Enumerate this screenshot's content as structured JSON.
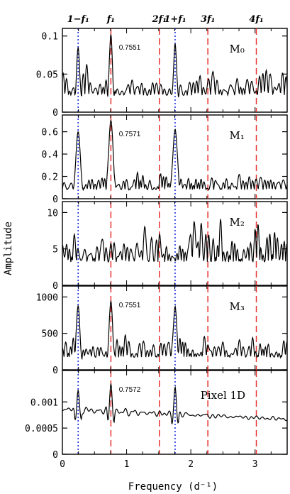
{
  "chart_data": {
    "type": "line",
    "xlabel": "Frequency (d⁻¹)",
    "ylabel": "Amplitude",
    "xlim": [
      0,
      3.5
    ],
    "x_ticks": [
      0,
      1,
      2,
      3
    ],
    "top_labels": [
      {
        "text": "1−f₁",
        "x": 0.245
      },
      {
        "text": "f₁",
        "x": 0.755
      },
      {
        "text": "2f₁",
        "x": 1.51
      },
      {
        "text": "1+f₁",
        "x": 1.755
      },
      {
        "text": "3f₁",
        "x": 2.265
      },
      {
        "text": "4f₁",
        "x": 3.02
      }
    ],
    "red_dashed_lines": [
      0.755,
      1.51,
      2.265,
      3.02
    ],
    "blue_dotted_lines": [
      0.245,
      1.755
    ],
    "panels": [
      {
        "label": "M₀",
        "ylim": [
          0,
          0.11
        ],
        "yticks": [
          "0",
          "0.05",
          "0.1"
        ],
        "ytick_values": [
          0,
          0.05,
          0.1
        ],
        "peak_label": "0.7551",
        "noise_base": 0.022,
        "noise_amp": 0.03,
        "peaks": [
          [
            0.245,
            0.085
          ],
          [
            0.755,
            0.102
          ],
          [
            1.755,
            0.09
          ]
        ],
        "peak_width": 0.03,
        "flat": false
      },
      {
        "label": "M₁",
        "ylim": [
          0,
          0.75
        ],
        "yticks": [
          "0",
          "0.2",
          "0.4",
          "0.6"
        ],
        "ytick_values": [
          0,
          0.2,
          0.4,
          0.6
        ],
        "peak_label": "0.7571",
        "noise_base": 0.08,
        "noise_amp": 0.14,
        "peaks": [
          [
            0.245,
            0.6
          ],
          [
            0.755,
            0.7
          ],
          [
            1.755,
            0.62
          ]
        ],
        "peak_width": 0.045,
        "flat": false
      },
      {
        "label": "M₂",
        "ylim": [
          0,
          11.5
        ],
        "yticks": [
          "0",
          "5",
          "10"
        ],
        "ytick_values": [
          0,
          5,
          10
        ],
        "peak_label": "",
        "noise_base": 3.2,
        "noise_amp": 4.8,
        "peaks": [],
        "peak_width": 0.03,
        "flat": false
      },
      {
        "label": "M₃",
        "ylim": [
          0,
          1150
        ],
        "yticks": [
          "0",
          "500",
          "1000"
        ],
        "ytick_values": [
          0,
          500,
          1000
        ],
        "peak_label": "0.7551",
        "noise_base": 170,
        "noise_amp": 280,
        "peaks": [
          [
            0.245,
            880
          ],
          [
            0.755,
            940
          ],
          [
            1.755,
            870
          ]
        ],
        "peak_width": 0.035,
        "flat": false
      },
      {
        "label": "Pixel 1D",
        "ylim": [
          0,
          0.0016
        ],
        "yticks": [
          "0",
          "0.0005",
          "0.001"
        ],
        "ytick_values": [
          0,
          0.0005,
          0.001
        ],
        "peak_label": "0.7572",
        "noise_base": 0.00086,
        "noise_amp": 0.00018,
        "peaks": [
          [
            0.245,
            0.00122
          ],
          [
            0.755,
            0.00134
          ],
          [
            1.755,
            0.00128
          ]
        ],
        "peak_width": 0.03,
        "flat": true
      }
    ]
  },
  "colors": {
    "axis": "#000000",
    "red_line": "#e8322f",
    "blue_line": "#1a2fe0",
    "curve": "#000000"
  }
}
